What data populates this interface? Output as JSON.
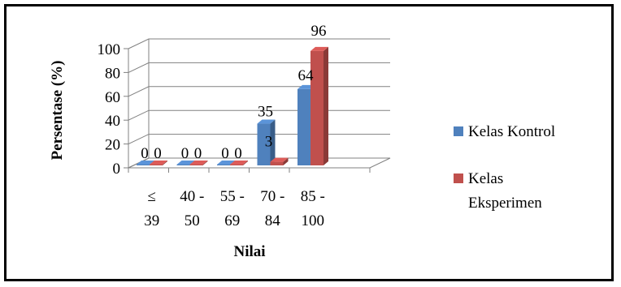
{
  "chart_data": {
    "type": "bar",
    "categories": [
      "≤ 39",
      "40 - 50",
      "55 - 69",
      "70 - 84",
      "85 - 100"
    ],
    "category_lines": [
      [
        "≤",
        "39"
      ],
      [
        "40 -",
        "50"
      ],
      [
        "55 -",
        "69"
      ],
      [
        "70 -",
        "84"
      ],
      [
        "85 -",
        "100"
      ]
    ],
    "series": [
      {
        "name": "Kelas Kontrol",
        "values": [
          0,
          0,
          0,
          35,
          64
        ],
        "color": "#4f81bd"
      },
      {
        "name": "Kelas Eksperimen",
        "values": [
          0,
          0,
          0,
          3,
          96
        ],
        "color": "#c0504d"
      }
    ],
    "legend_lines": [
      [
        "Kelas Kontrol"
      ],
      [
        "Kelas",
        "Eksperimen"
      ]
    ],
    "title": "",
    "xlabel": "Nilai",
    "ylabel": "Persentase (%)",
    "ylim": [
      0,
      100
    ],
    "yticks": [
      0,
      20,
      40,
      60,
      80,
      100
    ],
    "legend_position": "right",
    "style": "3d-clustered",
    "grid": true
  }
}
